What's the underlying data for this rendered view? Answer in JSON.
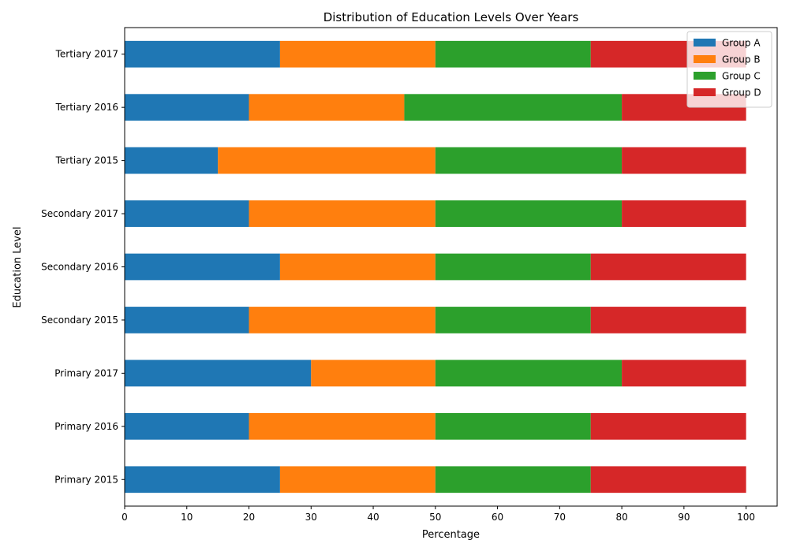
{
  "chart_data": {
    "type": "bar",
    "orientation": "horizontal",
    "stacked": true,
    "title": "Distribution of Education Levels Over Years",
    "xlabel": "Percentage",
    "ylabel": "Education Level",
    "xlim": [
      0,
      105
    ],
    "xticks": [
      0,
      10,
      20,
      30,
      40,
      50,
      60,
      70,
      80,
      90,
      100
    ],
    "grid": false,
    "legend_position": "top-right",
    "categories": [
      "Primary 2015",
      "Primary 2016",
      "Primary 2017",
      "Secondary 2015",
      "Secondary 2016",
      "Secondary 2017",
      "Tertiary 2015",
      "Tertiary 2016",
      "Tertiary 2017"
    ],
    "series": [
      {
        "name": "Group A",
        "color": "#1f77b4",
        "values": [
          25,
          20,
          30,
          20,
          25,
          20,
          15,
          20,
          25
        ]
      },
      {
        "name": "Group B",
        "color": "#ff7f0e",
        "values": [
          25,
          30,
          20,
          30,
          25,
          30,
          35,
          25,
          25
        ]
      },
      {
        "name": "Group C",
        "color": "#2ca02c",
        "values": [
          25,
          25,
          30,
          25,
          25,
          30,
          30,
          35,
          25
        ]
      },
      {
        "name": "Group D",
        "color": "#d62728",
        "values": [
          25,
          25,
          20,
          25,
          25,
          20,
          20,
          20,
          25
        ]
      }
    ]
  }
}
